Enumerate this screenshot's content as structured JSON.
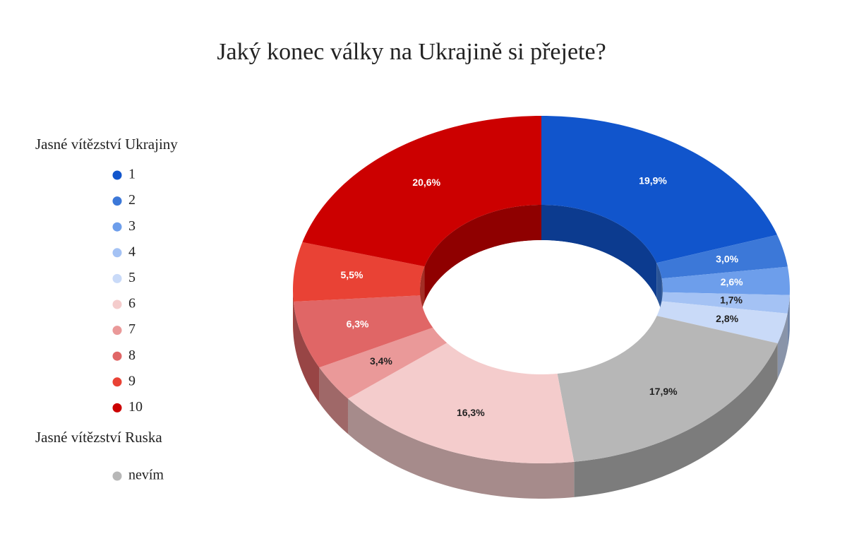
{
  "chart_data": {
    "type": "donut3d",
    "title": "Jaký konec války na Ukrajině si přejete?",
    "legend_annotations": [
      "Jasné vítězství Ukrajiny",
      "Jasné vítězství Ruska"
    ],
    "categories": [
      "1",
      "2",
      "3",
      "4",
      "5",
      "nevím",
      "6",
      "7",
      "8",
      "9",
      "10"
    ],
    "values": [
      19.9,
      3.0,
      2.6,
      1.7,
      2.8,
      17.9,
      16.3,
      3.4,
      6.3,
      5.5,
      20.6
    ],
    "value_labels": [
      "19,9%",
      "3,0%",
      "2,6%",
      "1,7%",
      "2,8%",
      "17,9%",
      "16,3%",
      "3,4%",
      "6,3%",
      "5,5%",
      "20,6%"
    ],
    "colors": [
      "#1155cc",
      "#3c78d8",
      "#6d9eeb",
      "#a4c2f4",
      "#c9daf8",
      "#b7b7b7",
      "#f4cccc",
      "#ea9999",
      "#e06666",
      "#e94235",
      "#cc0000"
    ],
    "legend": "left"
  }
}
